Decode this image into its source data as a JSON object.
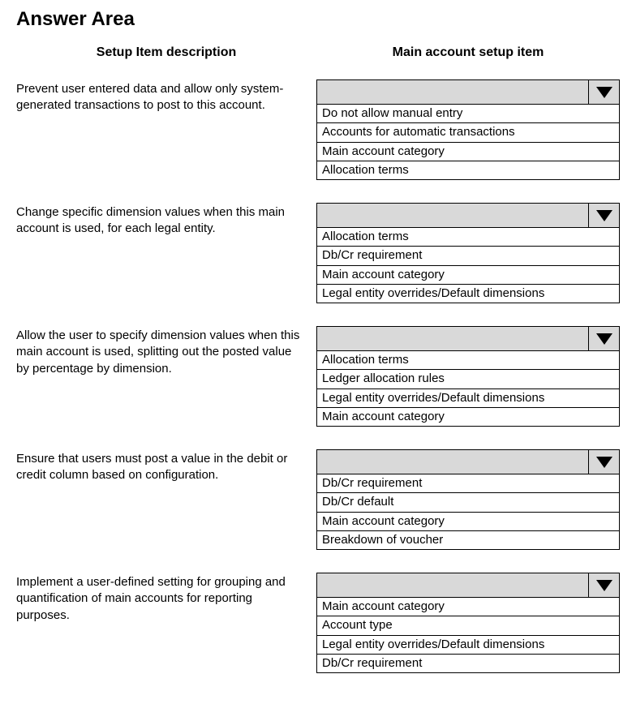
{
  "title": "Answer Area",
  "headers": {
    "left": "Setup Item description",
    "right": "Main account setup item"
  },
  "rows": [
    {
      "description": "Prevent user entered data and allow only system-generated transactions to post to this account.",
      "options": [
        "Do not allow manual entry",
        "Accounts for automatic transactions",
        "Main account category",
        "Allocation terms"
      ]
    },
    {
      "description": "Change specific dimension values when this main account is used, for each legal entity.",
      "options": [
        "Allocation terms",
        "Db/Cr requirement",
        "Main account category",
        "Legal entity overrides/Default dimensions"
      ]
    },
    {
      "description": "Allow the user to specify dimension values when this main account is used, splitting out the posted value by percentage by dimension.",
      "options": [
        "Allocation terms",
        "Ledger allocation rules",
        "Legal entity overrides/Default dimensions",
        "Main account category"
      ]
    },
    {
      "description": "Ensure that users must post a value in the debit or credit column based on configuration.",
      "options": [
        "Db/Cr requirement",
        "Db/Cr default",
        "Main account category",
        "Breakdown of voucher"
      ]
    },
    {
      "description": "Implement a user-defined setting for grouping and quantification of main accounts for reporting purposes.",
      "options": [
        "Main account category",
        "Account type",
        "Legal entity overrides/Default dimensions",
        "Db/Cr requirement"
      ]
    }
  ]
}
